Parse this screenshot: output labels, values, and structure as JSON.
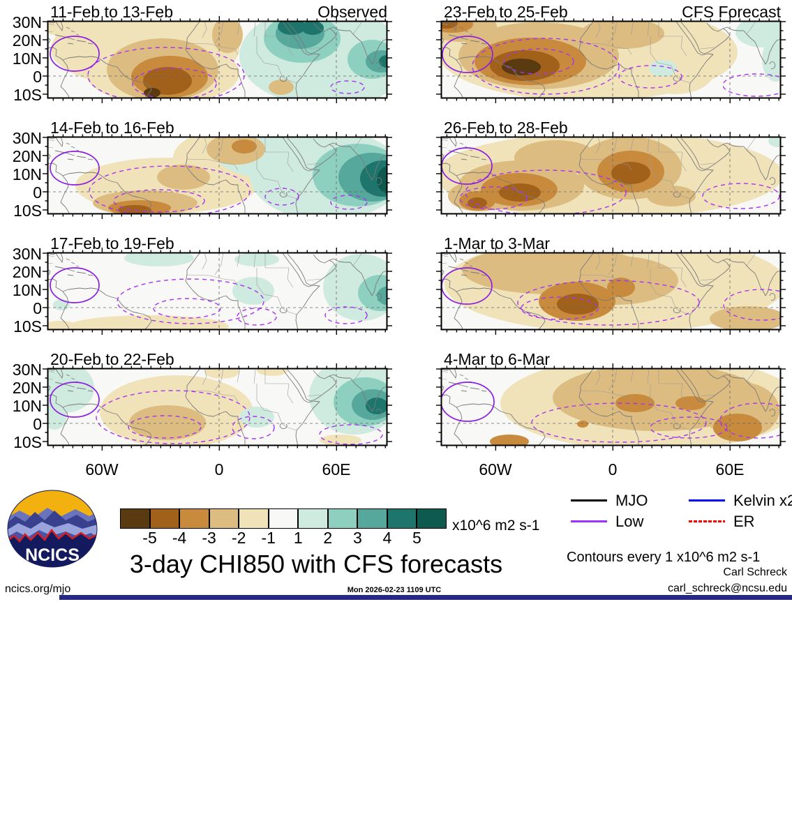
{
  "chart_data": {
    "type": "heatmap",
    "title": "3-day CHI850 with CFS forecasts",
    "units_label": "x10^6 m2 s-1",
    "contours_note": "Contours every 1 x10^6 m2 s-1",
    "column_headers": [
      "Observed",
      "CFS Forecast"
    ],
    "lat_tick_labels": [
      "30N",
      "20N",
      "10N",
      "0",
      "10S"
    ],
    "lon_tick_labels": [
      "60W",
      "0",
      "60E"
    ],
    "colorbar": {
      "tick_labels": [
        "-5",
        "-4",
        "-3",
        "-2",
        "-1",
        "1",
        "2",
        "3",
        "4",
        "5"
      ],
      "colors": [
        "#5a3a10",
        "#a2611a",
        "#c88a3c",
        "#dcbc80",
        "#f0e3ba",
        "#f8f8f6",
        "#cfeadf",
        "#8ed0c0",
        "#55a89b",
        "#1d756b",
        "#0e5a4e"
      ],
      "background": "#f8f8f6"
    },
    "line_colors": {
      "coast": "#7a7a7a",
      "border": "#9a9a9a",
      "grid": "#666666",
      "low_solid": "#8d1fe0",
      "low_dashed": "#a833f0",
      "frame": "#000000"
    },
    "legend": [
      {
        "label": "MJO",
        "color": "#000000"
      },
      {
        "label": "Kelvin x2",
        "color": "#0000ff"
      },
      {
        "label": "Low",
        "color": "#9b30ff"
      },
      {
        "label": "ER",
        "color": "#ff0000"
      }
    ],
    "panels": [
      {
        "title": "11-Feb to 13-Feb",
        "corner_label": "Observed",
        "column": "observed",
        "features": [
          [
            -1,
            35,
            8,
            45,
            15
          ],
          [
            -1,
            140,
            40,
            135,
            55
          ],
          [
            -1,
            165,
            75,
            110,
            45
          ],
          [
            -2,
            165,
            70,
            80,
            45
          ],
          [
            -3,
            175,
            80,
            55,
            30
          ],
          [
            -4,
            172,
            86,
            35,
            20
          ],
          [
            -5,
            150,
            103,
            12,
            7
          ],
          [
            -2,
            258,
            20,
            22,
            26
          ],
          [
            -2,
            335,
            95,
            18,
            11
          ],
          [
            1,
            410,
            55,
            105,
            70
          ],
          [
            1,
            390,
            50,
            115,
            70
          ],
          [
            2,
            365,
            25,
            55,
            35
          ],
          [
            3,
            362,
            18,
            35,
            22
          ],
          [
            4,
            350,
            8,
            20,
            12
          ],
          [
            4,
            380,
            10,
            16,
            10
          ],
          [
            2,
            465,
            55,
            35,
            28
          ],
          [
            3,
            478,
            58,
            22,
            16
          ],
          [
            4,
            487,
            58,
            12,
            9
          ]
        ],
        "low_ellipse": [
          39,
          47,
          35,
          25
        ],
        "dashed_ellipses": [
          [
            170,
            78,
            112,
            40
          ],
          [
            182,
            90,
            60,
            22
          ],
          [
            430,
            95,
            24,
            9
          ]
        ]
      },
      {
        "title": "14-Feb to 16-Feb",
        "corner_label": "",
        "column": "observed",
        "features": [
          [
            -1,
            170,
            70,
            130,
            40
          ],
          [
            -1,
            260,
            30,
            80,
            40
          ],
          [
            -2,
            270,
            18,
            42,
            22
          ],
          [
            -3,
            282,
            14,
            18,
            10
          ],
          [
            -2,
            195,
            58,
            38,
            18
          ],
          [
            -2,
            140,
            95,
            75,
            18
          ],
          [
            -3,
            132,
            102,
            45,
            11
          ],
          [
            -4,
            125,
            105,
            24,
            7
          ],
          [
            1,
            360,
            25,
            120,
            40
          ],
          [
            1,
            400,
            55,
            110,
            65
          ],
          [
            2,
            445,
            55,
            65,
            45
          ],
          [
            3,
            465,
            58,
            48,
            35
          ],
          [
            4,
            480,
            60,
            32,
            26
          ],
          [
            5,
            490,
            62,
            18,
            20
          ]
        ],
        "low_ellipse": [
          39,
          45,
          35,
          24
        ],
        "dashed_ellipses": [
          [
            175,
            78,
            115,
            36
          ],
          [
            160,
            92,
            65,
            16
          ],
          [
            336,
            86,
            24,
            12
          ],
          [
            432,
            94,
            26,
            10
          ]
        ]
      },
      {
        "title": "17-Feb to 19-Feb",
        "corner_label": "",
        "column": "observed",
        "features": [
          [
            -1,
            145,
            106,
            115,
            16
          ],
          [
            -1,
            18,
            107,
            28,
            9
          ],
          [
            1,
            160,
            8,
            50,
            12
          ],
          [
            1,
            300,
            10,
            32,
            10
          ],
          [
            1,
            20,
            75,
            12,
            8
          ],
          [
            1,
            295,
            55,
            30,
            20
          ],
          [
            1,
            450,
            50,
            55,
            48
          ],
          [
            2,
            477,
            58,
            32,
            26
          ],
          [
            3,
            490,
            62,
            18,
            14
          ]
        ],
        "low_ellipse": [
          39,
          47,
          35,
          25
        ],
        "dashed_ellipses": [
          [
            205,
            70,
            105,
            32
          ],
          [
            200,
            80,
            48,
            14
          ],
          [
            300,
            92,
            28,
            12
          ],
          [
            428,
            90,
            30,
            12
          ]
        ]
      },
      {
        "title": "20-Feb to 22-Feb",
        "corner_label": "",
        "column": "observed",
        "features": [
          [
            1,
            25,
            28,
            42,
            36
          ],
          [
            1,
            10,
            68,
            18,
            20
          ],
          [
            -1,
            185,
            62,
            110,
            52
          ],
          [
            -2,
            172,
            78,
            55,
            25
          ],
          [
            -1,
            250,
            5,
            25,
            10
          ],
          [
            -1,
            322,
            3,
            22,
            8
          ],
          [
            1,
            300,
            70,
            25,
            15
          ],
          [
            1,
            440,
            40,
            65,
            55
          ],
          [
            2,
            455,
            48,
            45,
            35
          ],
          [
            3,
            466,
            52,
            30,
            22
          ],
          [
            4,
            472,
            54,
            16,
            12
          ],
          [
            -1,
            420,
            103,
            30,
            8
          ]
        ],
        "low_ellipse": [
          39,
          45,
          35,
          25
        ],
        "dashed_ellipses": [
          [
            180,
            70,
            110,
            38
          ],
          [
            168,
            84,
            52,
            16
          ],
          [
            295,
            85,
            30,
            16
          ],
          [
            435,
            95,
            45,
            14
          ]
        ]
      },
      {
        "title": "23-Feb to 25-Feb",
        "corner_label": "CFS Forecast",
        "column": "forecast",
        "features": [
          [
            -1,
            210,
            45,
            215,
            70
          ],
          [
            -2,
            140,
            50,
            115,
            48
          ],
          [
            -3,
            128,
            58,
            80,
            34
          ],
          [
            -4,
            120,
            64,
            50,
            22
          ],
          [
            -5,
            115,
            66,
            28,
            12
          ],
          [
            -2,
            30,
            8,
            50,
            22
          ],
          [
            -3,
            16,
            5,
            30,
            12
          ],
          [
            -4,
            8,
            3,
            16,
            8
          ],
          [
            -2,
            260,
            18,
            60,
            22
          ],
          [
            -1,
            335,
            75,
            55,
            30
          ],
          [
            1,
            460,
            16,
            38,
            22
          ],
          [
            1,
            480,
            55,
            20,
            32
          ],
          [
            1,
            318,
            68,
            20,
            12
          ]
        ],
        "low_ellipse": [
          38,
          48,
          36,
          26
        ],
        "dashed_ellipses": [
          [
            150,
            65,
            105,
            40
          ],
          [
            140,
            58,
            50,
            18
          ],
          [
            300,
            80,
            45,
            16
          ],
          [
            452,
            92,
            48,
            16
          ]
        ]
      },
      {
        "title": "26-Feb to 28-Feb",
        "corner_label": "",
        "column": "forecast",
        "features": [
          [
            -1,
            240,
            55,
            250,
            62
          ],
          [
            -2,
            115,
            70,
            90,
            36
          ],
          [
            -3,
            112,
            76,
            55,
            24
          ],
          [
            -4,
            113,
            80,
            30,
            13
          ],
          [
            -2,
            55,
            85,
            45,
            22
          ],
          [
            -3,
            52,
            92,
            26,
            14
          ],
          [
            -4,
            52,
            95,
            14,
            8
          ],
          [
            -2,
            270,
            45,
            75,
            45
          ],
          [
            -3,
            272,
            50,
            48,
            30
          ],
          [
            -4,
            272,
            52,
            28,
            16
          ],
          [
            -2,
            165,
            30,
            60,
            25
          ],
          [
            -2,
            330,
            85,
            35,
            15
          ],
          [
            1,
            483,
            6,
            14,
            9
          ]
        ],
        "low_ellipse": [
          37,
          42,
          36,
          26
        ],
        "dashed_ellipses": [
          [
            150,
            80,
            115,
            32
          ],
          [
            75,
            88,
            48,
            16
          ],
          [
            430,
            85,
            55,
            18
          ]
        ]
      },
      {
        "title": "1-Mar to 3-Mar",
        "corner_label": "",
        "column": "forecast",
        "features": [
          [
            -1,
            250,
            45,
            245,
            70
          ],
          [
            -2,
            160,
            25,
            130,
            35
          ],
          [
            -2,
            250,
            40,
            90,
            35
          ],
          [
            -3,
            195,
            70,
            55,
            28
          ],
          [
            -4,
            196,
            74,
            30,
            15
          ],
          [
            -3,
            258,
            50,
            20,
            14
          ],
          [
            -2,
            440,
            95,
            55,
            18
          ]
        ],
        "low_ellipse": [
          37,
          48,
          36,
          26
        ],
        "dashed_ellipses": [
          [
            240,
            72,
            130,
            32
          ],
          [
            170,
            80,
            55,
            16
          ],
          [
            460,
            75,
            55,
            22
          ]
        ]
      },
      {
        "title": "4-Mar to 6-Mar",
        "corner_label": "",
        "column": "forecast",
        "features": [
          [
            -1,
            300,
            50,
            215,
            68
          ],
          [
            -2,
            310,
            42,
            150,
            48
          ],
          [
            -2,
            430,
            60,
            55,
            40
          ],
          [
            -3,
            278,
            50,
            28,
            13
          ],
          [
            -3,
            358,
            50,
            22,
            10
          ],
          [
            -3,
            425,
            85,
            35,
            20
          ],
          [
            -3,
            98,
            105,
            28,
            10
          ],
          [
            -3,
            203,
            80,
            8,
            5
          ]
        ],
        "low_ellipse": [
          38,
          48,
          38,
          28
        ],
        "dashed_ellipses": [
          [
            255,
            78,
            125,
            28
          ],
          [
            355,
            85,
            55,
            15
          ],
          [
            455,
            75,
            55,
            25
          ]
        ]
      }
    ]
  },
  "footer": {
    "site": "ncics.org/mjo",
    "timestamp": "Mon 2026-02-23 1109 UTC",
    "author": "Carl Schreck",
    "email": "carl_schreck@ncsu.edu"
  },
  "logo": {
    "text": "NCICS"
  }
}
